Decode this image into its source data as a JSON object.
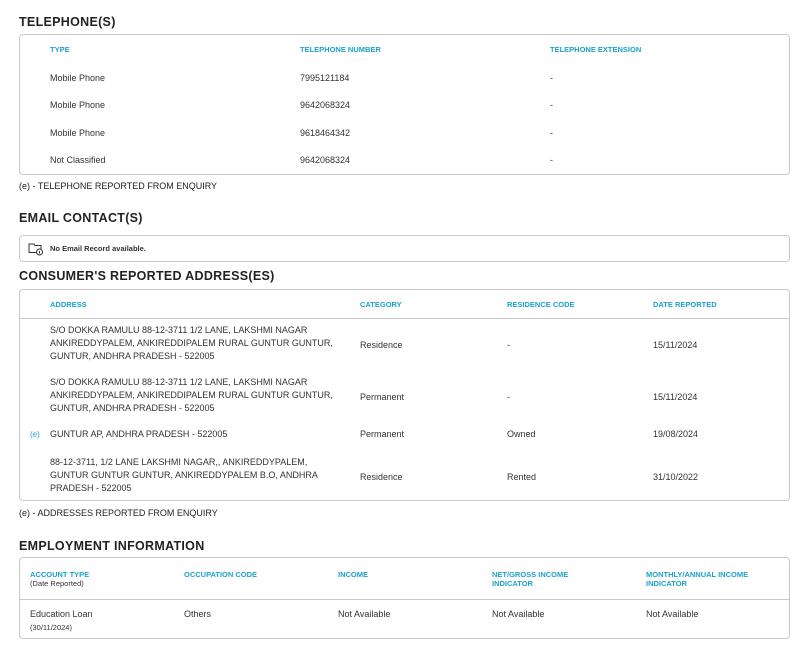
{
  "telephones": {
    "title": "TELEPHONE(S)",
    "headers": [
      "TYPE",
      "TELEPHONE NUMBER",
      "TELEPHONE EXTENSION"
    ],
    "rows": [
      [
        "Mobile Phone",
        "7995121184",
        "-"
      ],
      [
        "Mobile Phone",
        "9642068324",
        "-"
      ],
      [
        "Mobile Phone",
        "9618464342",
        "-"
      ],
      [
        "Not Classified",
        "9642068324",
        "-"
      ]
    ],
    "note": "(e) - TELEPHONE REPORTED FROM ENQUIRY"
  },
  "email": {
    "title": "EMAIL CONTACT(S)",
    "icon": "folder-info-icon",
    "message": "No Email Record available."
  },
  "addresses": {
    "title": "CONSUMER'S REPORTED ADDRESS(ES)",
    "headers": [
      "ADDRESS",
      "CATEGORY",
      "RESIDENCE CODE",
      "DATE REPORTED"
    ],
    "rows": [
      {
        "marker": "",
        "address": "S/O DOKKA RAMULU 88-12-3711 1/2 LANE, LAKSHMI NAGAR ANKIREDDYPALEM, ANKIREDDIPALEM RURAL GUNTUR GUNTUR, GUNTUR, ANDHRA PRADESH - 522005",
        "category": "Residence",
        "residence_code": "-",
        "date": "15/11/2024"
      },
      {
        "marker": "",
        "address": "S/O DOKKA RAMULU 88-12-3711 1/2 LANE, LAKSHMI NAGAR ANKIREDDYPALEM, ANKIREDDIPALEM RURAL GUNTUR GUNTUR, GUNTUR, ANDHRA PRADESH - 522005",
        "category": "Permanent",
        "residence_code": "-",
        "date": "15/11/2024"
      },
      {
        "marker": "(e)",
        "address": "GUNTUR AP, ANDHRA PRADESH - 522005",
        "category": "Permanent",
        "residence_code": "Owned",
        "date": "19/08/2024"
      },
      {
        "marker": "",
        "address": "88-12-3711, 1/2 LANE LAKSHMI NAGAR,, ANKIREDDYPALEM, GUNTUR GUNTUR GUNTUR, ANKIREDDYPALEM B.O, ANDHRA PRADESH - 522005",
        "category": "Residence",
        "residence_code": "Rented",
        "date": "31/10/2022"
      }
    ],
    "note": "(e) - ADDRESSES REPORTED FROM ENQUIRY"
  },
  "employment": {
    "title": "EMPLOYMENT INFORMATION",
    "headers": [
      "ACCOUNT TYPE",
      "OCCUPATION CODE",
      "INCOME",
      "NET/GROSS INCOME INDICATOR",
      "MONTHLY/ANNUAL INCOME INDICATOR"
    ],
    "header_sub": "(Date Reported)",
    "row": {
      "account_type": "Education Loan",
      "date": "(30/11/2024)",
      "occupation": "Others",
      "income": "Not Available",
      "net_gross": "Not Available",
      "monthly_annual": "Not Available"
    }
  }
}
